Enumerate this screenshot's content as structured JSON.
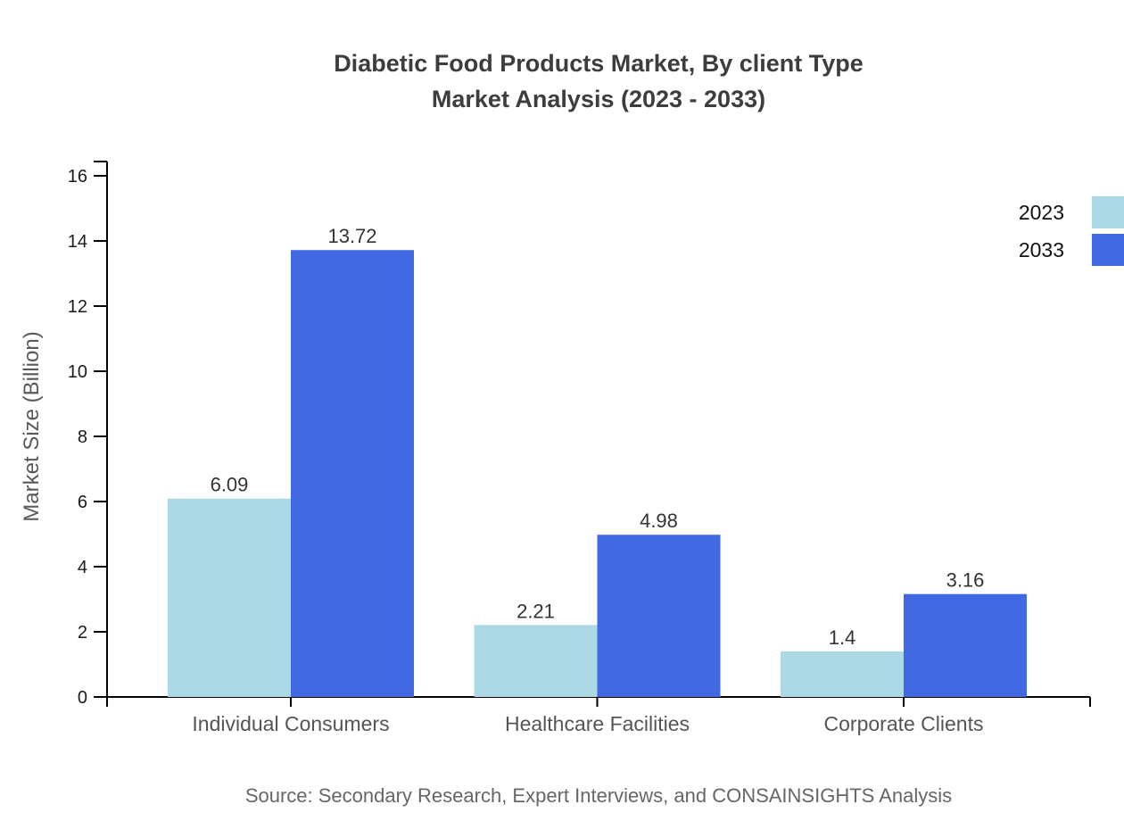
{
  "title": {
    "line1": "Diabetic Food Products Market, By client Type",
    "line2": "Market Analysis (2023 - 2033)"
  },
  "source_note": "Source: Secondary Research, Expert Interviews, and CONSAINSIGHTS Analysis",
  "legend": {
    "position": "top-right",
    "items": [
      {
        "label": "2023",
        "color": "#ADD8E6"
      },
      {
        "label": "2033",
        "color": "#4169E1"
      }
    ]
  },
  "y_axis": {
    "label": "Market Size (Billion)",
    "min": 0,
    "max": 16,
    "ticks": [
      0,
      2,
      4,
      6,
      8,
      10,
      12,
      14,
      16
    ]
  },
  "chart_data": {
    "type": "bar",
    "title": "Diabetic Food Products Market, By client Type Market Analysis (2023 - 2033)",
    "categories": [
      "Individual Consumers",
      "Healthcare Facilities",
      "Corporate Clients"
    ],
    "series": [
      {
        "name": "2023",
        "color": "#ADD8E6",
        "values": [
          6.09,
          2.21,
          1.4
        ]
      },
      {
        "name": "2033",
        "color": "#4169E1",
        "values": [
          13.72,
          4.98,
          3.16
        ]
      }
    ],
    "value_labels": [
      [
        "6.09",
        "2.21",
        "1.4"
      ],
      [
        "13.72",
        "4.98",
        "3.16"
      ]
    ],
    "xlabel": "",
    "ylabel": "Market Size (Billion)",
    "ylim": [
      0,
      16
    ],
    "yticks": [
      0,
      2,
      4,
      6,
      8,
      10,
      12,
      14,
      16
    ],
    "grid": false,
    "legend_position": "top-right",
    "bar_value_labels": true
  },
  "colors": {
    "title": "#3d3d3d",
    "axis": "#000000",
    "tick_label": "#1a1a1a",
    "category_label": "#555555",
    "value_label": "#333333",
    "axis_title": "#595959",
    "source": "#666666",
    "legend_text": "#111111",
    "background": "#ffffff"
  }
}
